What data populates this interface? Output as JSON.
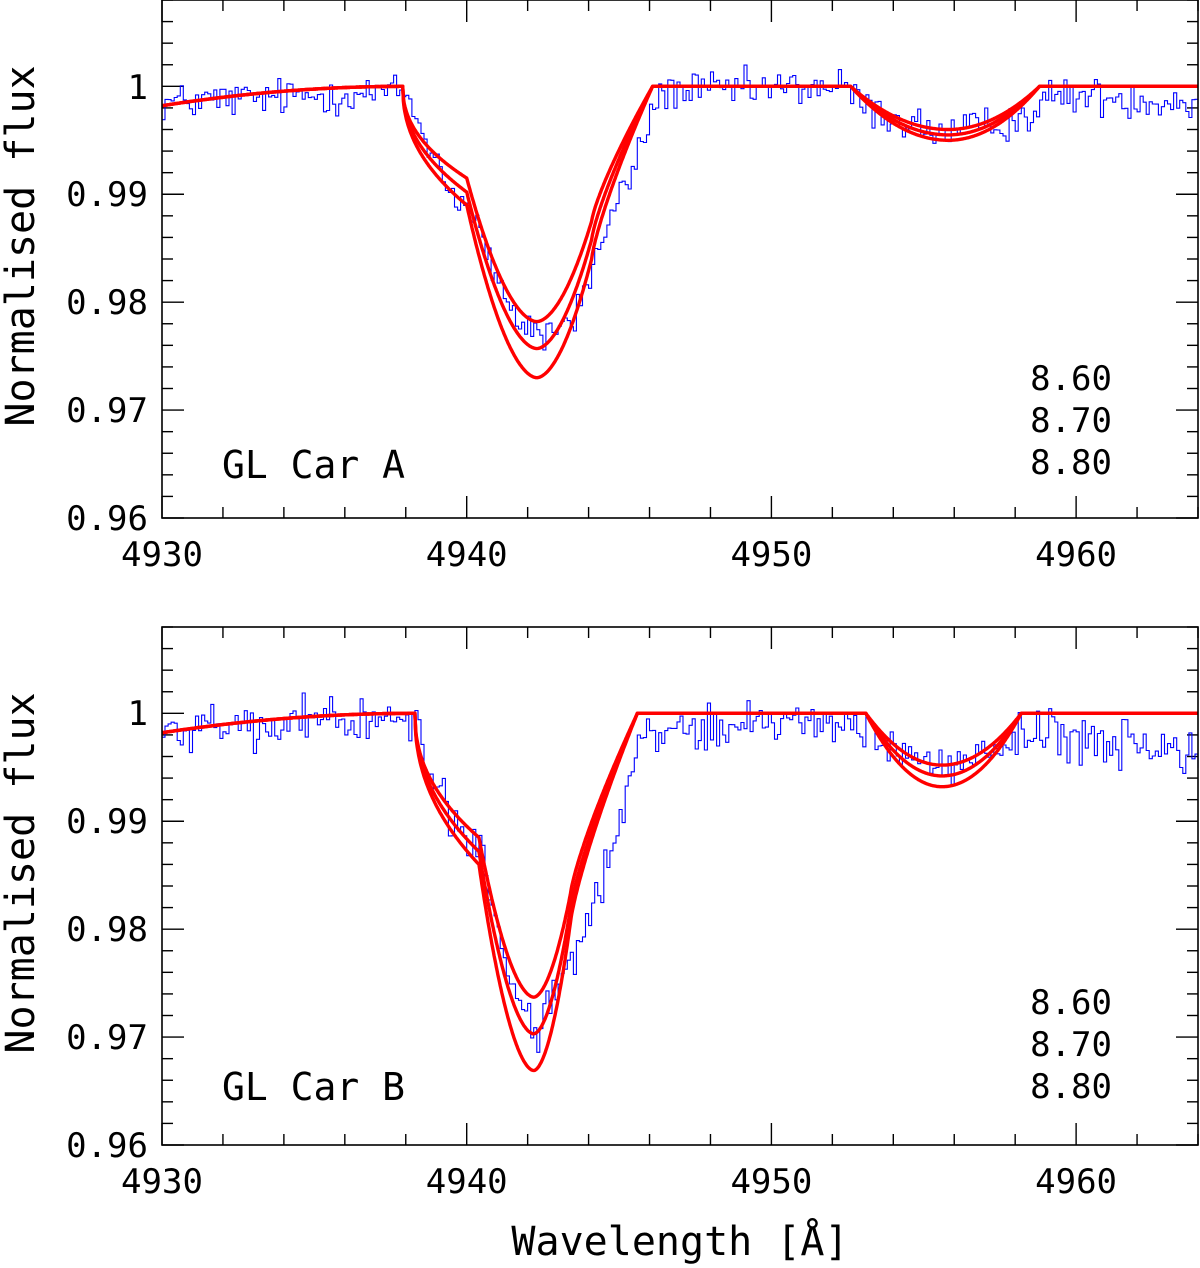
{
  "chart_data": [
    {
      "type": "line",
      "panel_label": "GL Car A",
      "xlabel": "",
      "ylabel": "Normalised flux",
      "xlim": [
        4930,
        4964
      ],
      "ylim": [
        0.96,
        1.008
      ],
      "x_ticks": [
        4930,
        4940,
        4950,
        4960
      ],
      "x_tick_labels": [
        "4930",
        "4940",
        "4950",
        "4960"
      ],
      "y_ticks": [
        0.96,
        0.97,
        0.98,
        0.99,
        1.0
      ],
      "y_tick_labels": [
        "0.96",
        "0.97",
        "0.98",
        "0.99",
        "1"
      ],
      "legend_labels": [
        "8.60",
        "8.70",
        "8.80"
      ],
      "observed_series": {
        "name": "observed",
        "color": "#0000ff",
        "x_start": 4930,
        "x_end": 4964,
        "x_step": 0.1,
        "trend": [
          [
            4930,
            0.9985
          ],
          [
            4937.9,
            0.9995
          ],
          [
            4939.4,
            0.9905
          ],
          [
            4940.2,
            0.988
          ],
          [
            4941.3,
            0.979
          ],
          [
            4942.5,
            0.977
          ],
          [
            4943.5,
            0.9785
          ],
          [
            4944.5,
            0.9865
          ],
          [
            4945.5,
            0.993
          ],
          [
            4946.3,
            0.9995
          ],
          [
            4952.2,
            1.0
          ],
          [
            4953.4,
            0.9975
          ],
          [
            4955.8,
            0.9955
          ],
          [
            4958.3,
            0.9972
          ],
          [
            4959.3,
            0.9992
          ],
          [
            4964,
            0.9985
          ]
        ],
        "noise": 0.0013
      },
      "model_series": [
        {
          "name": "8.60",
          "color": "#ff0000",
          "depth_main": 0.0218,
          "depth_secondary": 0.004,
          "shoulder_blue": 0.0085,
          "shoulder_red": 0.0125
        },
        {
          "name": "8.70",
          "color": "#ff0000",
          "depth_main": 0.0243,
          "depth_secondary": 0.0045,
          "shoulder_blue": 0.0098,
          "shoulder_red": 0.0142
        },
        {
          "name": "8.80",
          "color": "#ff0000",
          "depth_main": 0.027,
          "depth_secondary": 0.005,
          "shoulder_blue": 0.011,
          "shoulder_red": 0.016
        }
      ],
      "model_shape": {
        "continuum_start_x": 4930,
        "continuum_start_y": 0.9982,
        "continuum_flat_x": 4938,
        "blue_edge": 4937.9,
        "blue_shoulder": 4940.0,
        "center": 4942.3,
        "red_shoulder": 4944.1,
        "red_edge": 4946.1,
        "sec_blue_edge": 4952.6,
        "sec_center": 4955.8,
        "sec_red_edge": 4958.8
      }
    },
    {
      "type": "line",
      "panel_label": "GL Car B",
      "xlabel": "Wavelength [Å]",
      "ylabel": "Normalised flux",
      "xlim": [
        4930,
        4964
      ],
      "ylim": [
        0.96,
        1.008
      ],
      "x_ticks": [
        4930,
        4940,
        4950,
        4960
      ],
      "x_tick_labels": [
        "4930",
        "4940",
        "4950",
        "4960"
      ],
      "y_ticks": [
        0.96,
        0.97,
        0.98,
        0.99,
        1.0
      ],
      "y_tick_labels": [
        "0.96",
        "0.97",
        "0.98",
        "0.99",
        "1"
      ],
      "legend_labels": [
        "8.60",
        "8.70",
        "8.80"
      ],
      "observed_series": {
        "name": "observed",
        "color": "#0000ff",
        "x_start": 4930,
        "x_end": 4964,
        "x_step": 0.1,
        "trend": [
          [
            4930,
            0.9985
          ],
          [
            4938.3,
            0.9995
          ],
          [
            4939.5,
            0.9895
          ],
          [
            4940.4,
            0.9875
          ],
          [
            4941.2,
            0.977
          ],
          [
            4942.2,
            0.9705
          ],
          [
            4943.3,
            0.977
          ],
          [
            4944.0,
            0.981
          ],
          [
            4945.0,
            0.9895
          ],
          [
            4945.6,
            0.9985
          ],
          [
            4952.8,
            0.9995
          ],
          [
            4953.6,
            0.997
          ],
          [
            4955.6,
            0.9945
          ],
          [
            4957.6,
            0.997
          ],
          [
            4958.2,
            0.9988
          ],
          [
            4960,
            0.9975
          ],
          [
            4962.5,
            0.997
          ],
          [
            4964,
            0.9955
          ]
        ],
        "noise": 0.0015
      },
      "model_series": [
        {
          "name": "8.60",
          "color": "#ff0000",
          "depth_main": 0.0263,
          "depth_secondary": 0.0048,
          "shoulder_blue": 0.0115,
          "shoulder_red": 0.0168
        },
        {
          "name": "8.70",
          "color": "#ff0000",
          "depth_main": 0.0297,
          "depth_secondary": 0.0058,
          "shoulder_blue": 0.0128,
          "shoulder_red": 0.0182
        },
        {
          "name": "8.80",
          "color": "#ff0000",
          "depth_main": 0.0331,
          "depth_secondary": 0.0068,
          "shoulder_blue": 0.014,
          "shoulder_red": 0.0195
        }
      ],
      "model_shape": {
        "continuum_start_x": 4930,
        "continuum_start_y": 0.9982,
        "continuum_flat_x": 4938.3,
        "blue_edge": 4938.3,
        "blue_shoulder": 4940.4,
        "center": 4942.2,
        "red_shoulder": 4943.4,
        "red_edge": 4945.6,
        "sec_blue_edge": 4953.1,
        "sec_center": 4955.6,
        "sec_red_edge": 4958.2
      }
    }
  ]
}
